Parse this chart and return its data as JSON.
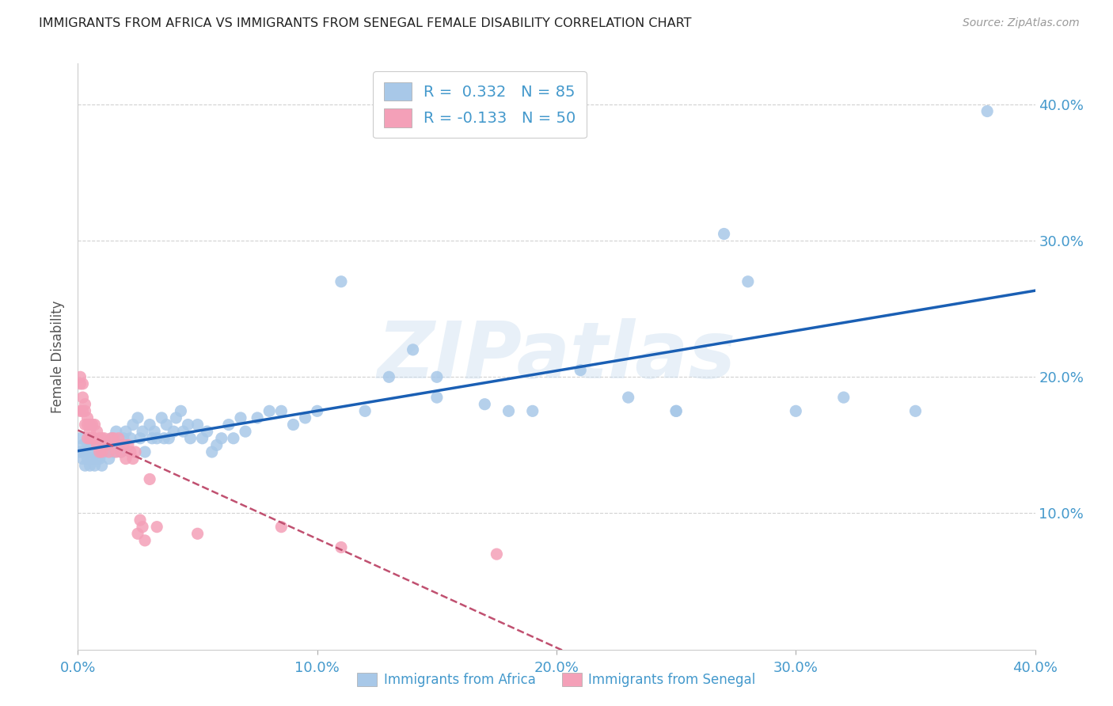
{
  "title": "IMMIGRANTS FROM AFRICA VS IMMIGRANTS FROM SENEGAL FEMALE DISABILITY CORRELATION CHART",
  "source": "Source: ZipAtlas.com",
  "ylabel": "Female Disability",
  "watermark": "ZIPatlas",
  "R_africa": 0.332,
  "N_africa": 85,
  "R_senegal": -0.133,
  "N_senegal": 50,
  "xlim": [
    0.0,
    0.4
  ],
  "ylim": [
    0.0,
    0.43
  ],
  "xticks": [
    0.0,
    0.1,
    0.2,
    0.3,
    0.4
  ],
  "yticks": [
    0.1,
    0.2,
    0.3,
    0.4
  ],
  "color_africa": "#a8c8e8",
  "color_africa_line": "#1a5fb4",
  "color_senegal": "#f4a0b8",
  "color_senegal_line": "#c05070",
  "background": "#ffffff",
  "africa_x": [
    0.001,
    0.001,
    0.002,
    0.002,
    0.003,
    0.003,
    0.004,
    0.004,
    0.005,
    0.005,
    0.006,
    0.006,
    0.007,
    0.007,
    0.008,
    0.008,
    0.009,
    0.009,
    0.01,
    0.01,
    0.011,
    0.012,
    0.013,
    0.014,
    0.015,
    0.016,
    0.017,
    0.018,
    0.019,
    0.02,
    0.022,
    0.023,
    0.025,
    0.026,
    0.027,
    0.028,
    0.03,
    0.031,
    0.032,
    0.033,
    0.035,
    0.036,
    0.037,
    0.038,
    0.04,
    0.041,
    0.043,
    0.044,
    0.046,
    0.047,
    0.05,
    0.052,
    0.054,
    0.056,
    0.058,
    0.06,
    0.063,
    0.065,
    0.068,
    0.07,
    0.075,
    0.08,
    0.085,
    0.09,
    0.095,
    0.1,
    0.11,
    0.12,
    0.13,
    0.14,
    0.15,
    0.17,
    0.19,
    0.21,
    0.23,
    0.25,
    0.27,
    0.3,
    0.32,
    0.35,
    0.25,
    0.28,
    0.15,
    0.18,
    0.38
  ],
  "africa_y": [
    0.155,
    0.145,
    0.15,
    0.14,
    0.145,
    0.135,
    0.15,
    0.14,
    0.145,
    0.135,
    0.14,
    0.15,
    0.145,
    0.135,
    0.14,
    0.15,
    0.14,
    0.145,
    0.135,
    0.15,
    0.145,
    0.15,
    0.14,
    0.155,
    0.145,
    0.16,
    0.15,
    0.145,
    0.155,
    0.16,
    0.155,
    0.165,
    0.17,
    0.155,
    0.16,
    0.145,
    0.165,
    0.155,
    0.16,
    0.155,
    0.17,
    0.155,
    0.165,
    0.155,
    0.16,
    0.17,
    0.175,
    0.16,
    0.165,
    0.155,
    0.165,
    0.155,
    0.16,
    0.145,
    0.15,
    0.155,
    0.165,
    0.155,
    0.17,
    0.16,
    0.17,
    0.175,
    0.175,
    0.165,
    0.17,
    0.175,
    0.27,
    0.175,
    0.2,
    0.22,
    0.2,
    0.18,
    0.175,
    0.205,
    0.185,
    0.175,
    0.305,
    0.175,
    0.185,
    0.175,
    0.175,
    0.27,
    0.185,
    0.175,
    0.395
  ],
  "senegal_x": [
    0.001,
    0.001,
    0.001,
    0.002,
    0.002,
    0.002,
    0.003,
    0.003,
    0.003,
    0.004,
    0.004,
    0.004,
    0.005,
    0.005,
    0.005,
    0.006,
    0.006,
    0.007,
    0.007,
    0.008,
    0.008,
    0.009,
    0.009,
    0.01,
    0.01,
    0.011,
    0.011,
    0.012,
    0.013,
    0.014,
    0.015,
    0.016,
    0.017,
    0.018,
    0.019,
    0.02,
    0.021,
    0.022,
    0.023,
    0.024,
    0.025,
    0.026,
    0.027,
    0.028,
    0.03,
    0.033,
    0.05,
    0.085,
    0.11,
    0.175
  ],
  "senegal_y": [
    0.2,
    0.195,
    0.175,
    0.195,
    0.185,
    0.175,
    0.18,
    0.175,
    0.165,
    0.17,
    0.165,
    0.155,
    0.165,
    0.16,
    0.155,
    0.165,
    0.155,
    0.165,
    0.155,
    0.16,
    0.15,
    0.155,
    0.145,
    0.155,
    0.145,
    0.155,
    0.15,
    0.15,
    0.145,
    0.155,
    0.155,
    0.145,
    0.155,
    0.145,
    0.15,
    0.14,
    0.15,
    0.145,
    0.14,
    0.145,
    0.085,
    0.095,
    0.09,
    0.08,
    0.125,
    0.09,
    0.085,
    0.09,
    0.075,
    0.07
  ]
}
